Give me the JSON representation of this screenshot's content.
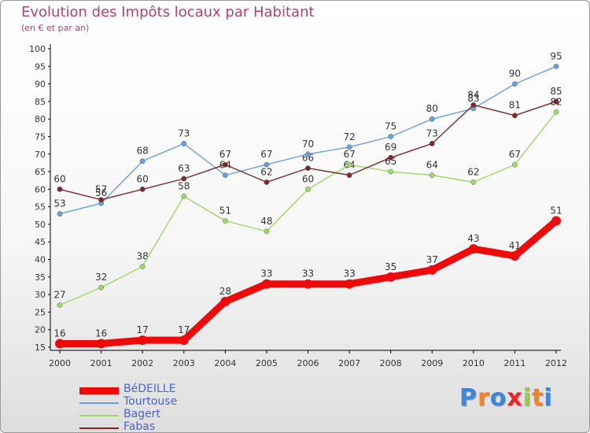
{
  "header": {
    "title": "Evolution des Impôts locaux par Habitant",
    "subtitle": "(en € et par an)"
  },
  "logo": {
    "text": "Proxiti",
    "letter_colors": [
      "#3d86d8",
      "#f0832a",
      "#3d86d8",
      "#e3282b",
      "#9bcc3c",
      "#f0832a",
      "#3d86d8"
    ]
  },
  "chart_data": {
    "type": "line",
    "title": "Evolution des Impôts locaux par Habitant",
    "subtitle": "(en € et par an)",
    "xlabel": "",
    "ylabel": "",
    "x": [
      "2000",
      "2001",
      "2002",
      "2003",
      "2004",
      "2005",
      "2006",
      "2007",
      "2008",
      "2009",
      "2010",
      "2011",
      "2012"
    ],
    "ylim": [
      15,
      100
    ],
    "yticks": [
      15,
      20,
      25,
      30,
      35,
      40,
      45,
      50,
      55,
      60,
      65,
      70,
      75,
      80,
      85,
      90,
      95,
      100
    ],
    "grid": false,
    "legend": "bottom-left",
    "series": [
      {
        "name": "BéDEILLE",
        "color": "#ee0a0a",
        "values": [
          16,
          16,
          17,
          17,
          28,
          33,
          33,
          33,
          35,
          37,
          43,
          41,
          51
        ]
      },
      {
        "name": "Tourtouse",
        "color": "#6aa0d8",
        "values": [
          53,
          56,
          68,
          73,
          64,
          67,
          70,
          72,
          75,
          80,
          83,
          90,
          95
        ]
      },
      {
        "name": "Bagert",
        "color": "#9ed868",
        "values": [
          27,
          32,
          38,
          58,
          51,
          48,
          60,
          67,
          65,
          64,
          62,
          67,
          82
        ]
      },
      {
        "name": "Fabas",
        "color": "#7a2a2a",
        "values": [
          60,
          57,
          60,
          63,
          67,
          62,
          66,
          64,
          69,
          73,
          84,
          81,
          85
        ]
      }
    ]
  }
}
